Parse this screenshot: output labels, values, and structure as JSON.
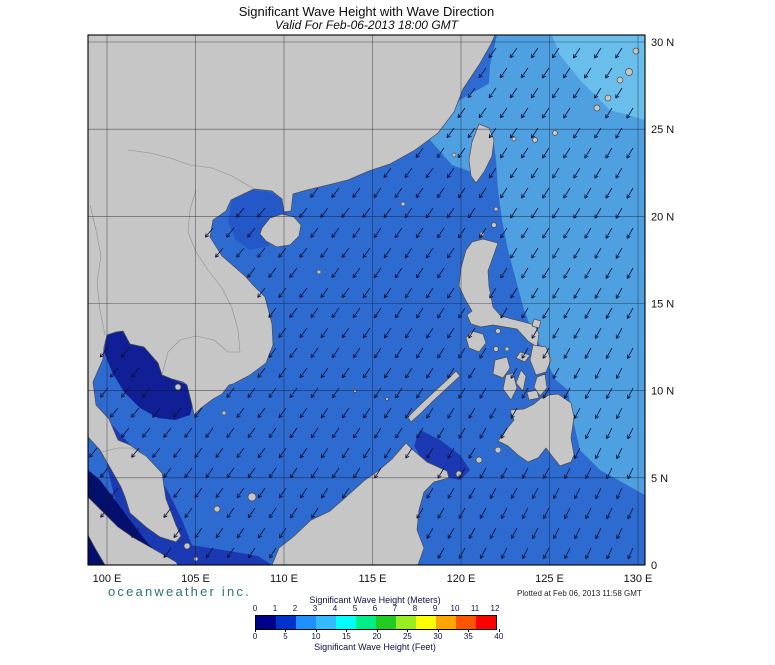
{
  "header": {
    "title": "Significant Wave Height with Wave Direction",
    "subtitle": "Valid For Feb-06-2013 18:00 GMT"
  },
  "axes": {
    "lon_labels": [
      "100 E",
      "105 E",
      "110 E",
      "115 E",
      "120 E",
      "125 E",
      "130 E"
    ],
    "lat_labels": [
      "0",
      "5 N",
      "10 N",
      "15 N",
      "20 N",
      "25 N",
      "30 N"
    ]
  },
  "legend": {
    "meters_label": "Significant Wave Height (Meters)",
    "meters_ticks": [
      "0",
      "1",
      "2",
      "3",
      "4",
      "5",
      "6",
      "7",
      "8",
      "9",
      "10",
      "11",
      "12"
    ],
    "feet_label": "Significant Wave Height (Feet)",
    "feet_ticks": [
      "0",
      "5",
      "10",
      "15",
      "20",
      "25",
      "30",
      "35",
      "40"
    ],
    "colors": [
      "#00008B",
      "#0033CC",
      "#1E90FF",
      "#33BBFF",
      "#00FFFF",
      "#00EE88",
      "#22CC22",
      "#99EE22",
      "#FFFF00",
      "#FFA500",
      "#FF5500",
      "#FF0000"
    ]
  },
  "footer": {
    "brand": "oceanweather inc.",
    "plotted": "Plotted at Feb 06, 2013 11:58 GMT"
  },
  "map": {
    "land_color": "#C6C6C6",
    "coastline_color": "#4A4C50",
    "arrow_color": "#0D1038",
    "sea_colors": {
      "base": "#2E6BD0",
      "east_pacific": "#4FA0E0",
      "northeast_light": "#69BEEC",
      "sheltered_dark": "#111F96",
      "approach_dark": "#1B39B2",
      "malacca": "#05106E",
      "tonkin": "#2457C8"
    }
  },
  "chart_data": {
    "type": "heatmap",
    "title": "Significant Wave Height with Wave Direction",
    "valid_time": "Feb-06-2013 18:00 GMT",
    "lon_range": [
      "100 E",
      "130 E"
    ],
    "lat_range": [
      "0",
      "30 N"
    ],
    "scale_meters": [
      0,
      1,
      2,
      3,
      4,
      5,
      6,
      7,
      8,
      9,
      10,
      11,
      12
    ],
    "scale_feet": [
      0,
      5,
      10,
      15,
      20,
      25,
      30,
      35,
      40
    ],
    "observed_range_summary": "Open-sea heights about 1-2 m over the South China Sea, 2-3 m in the Pacific east of Taiwan and Luzon, under 1 m in the Gulf of Thailand and Strait of Malacca; direction arrows point generally toward the southwest."
  }
}
